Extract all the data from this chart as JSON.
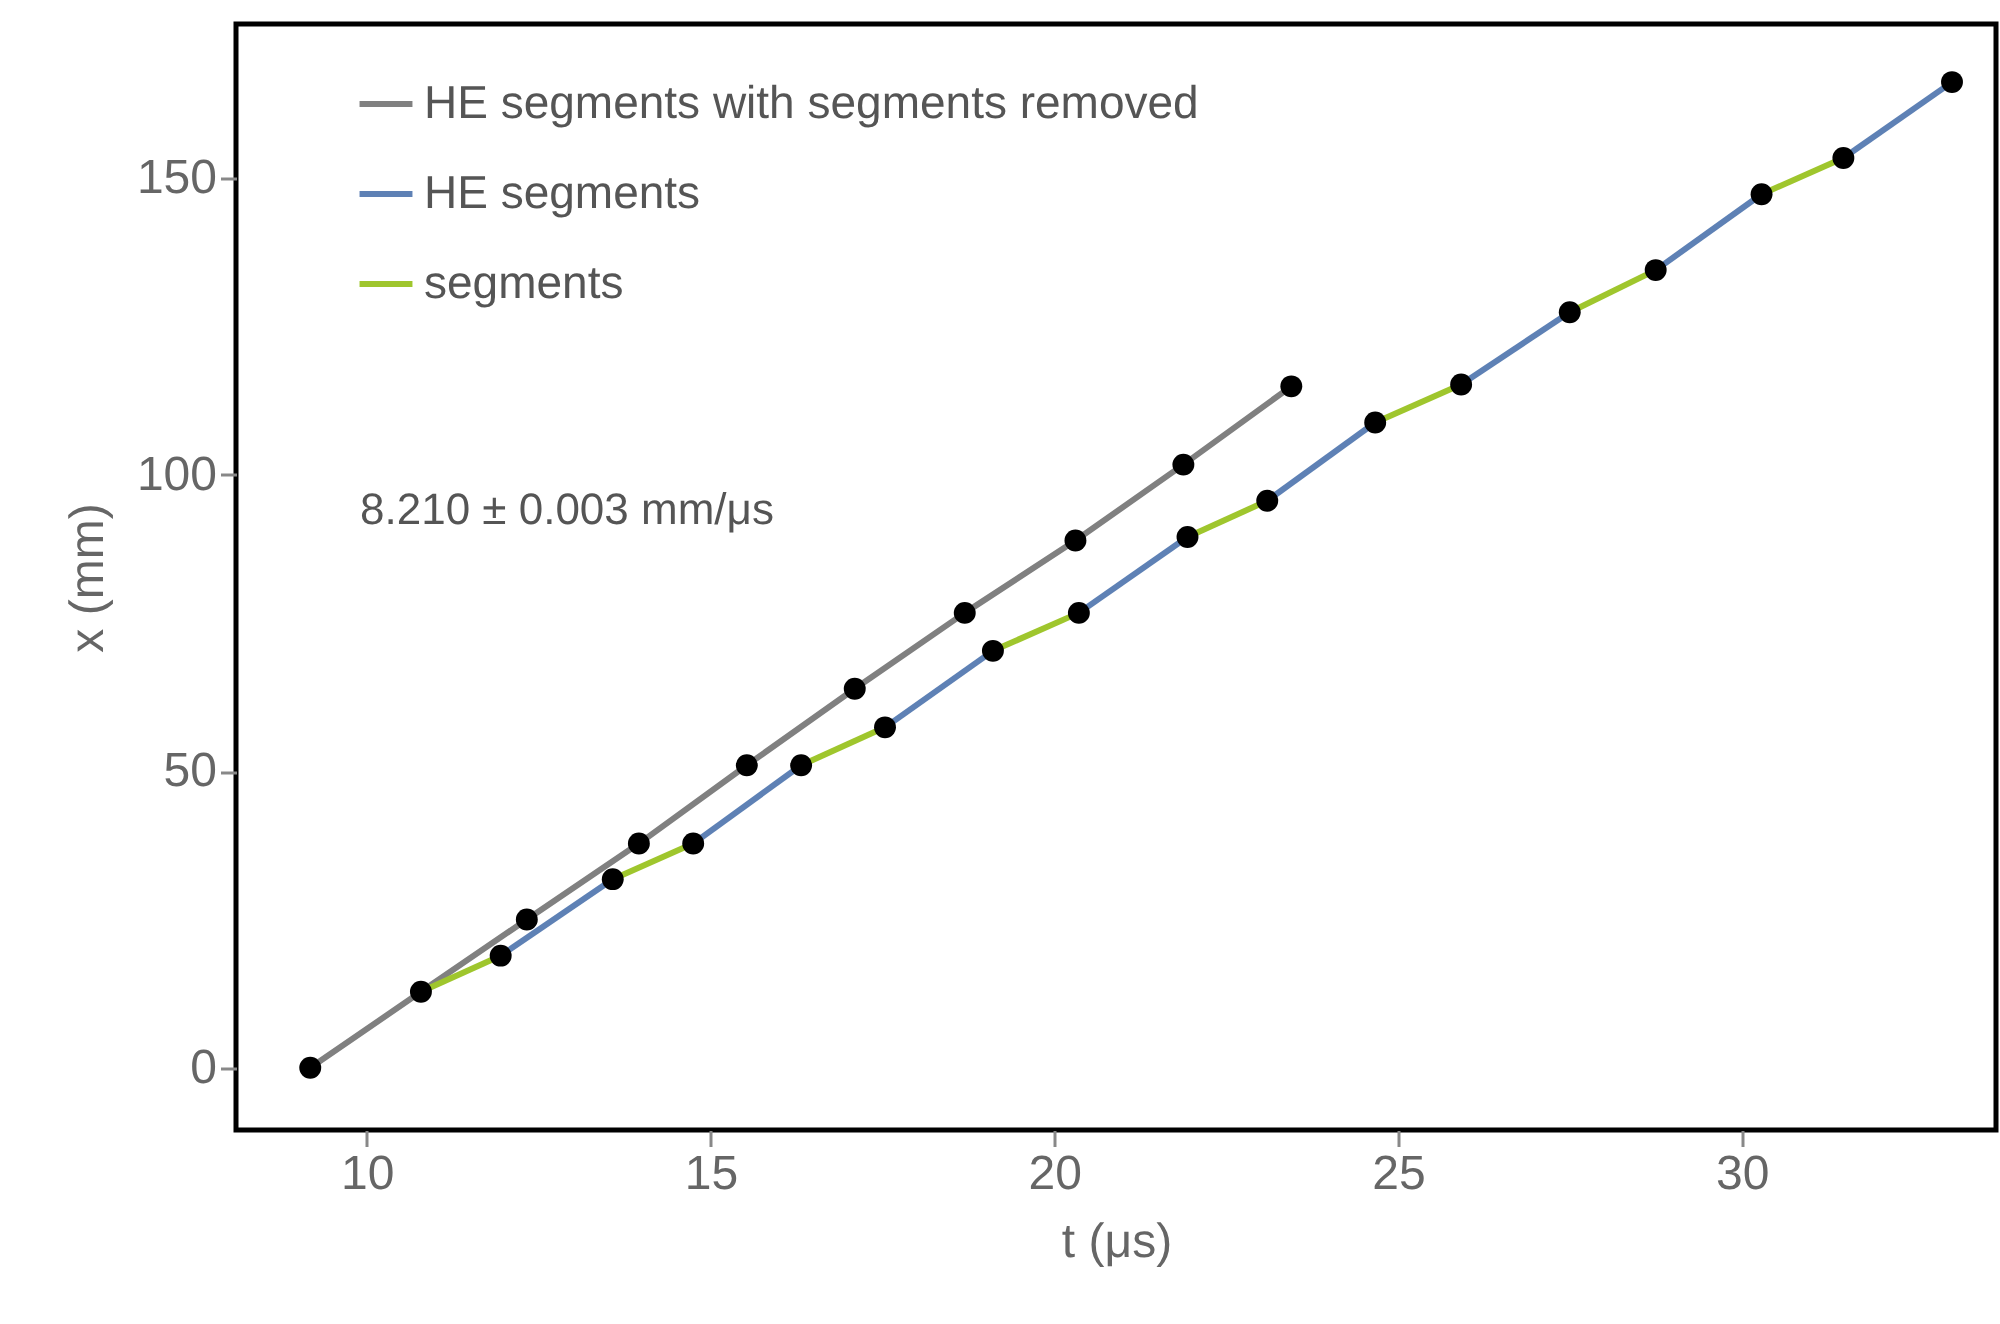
{
  "chart_data": {
    "type": "line",
    "xlabel": "t (μs)",
    "ylabel": "x (mm)",
    "xlim": [
      8.1,
      33.7
    ],
    "ylim": [
      -10.5,
      176
    ],
    "xticks": [
      10,
      15,
      20,
      25,
      30
    ],
    "yticks": [
      0,
      50,
      100,
      150
    ],
    "grid": false,
    "legend": "top left",
    "line_style": "solid",
    "annotations": [
      "8.210 ± 0.003 mm/μs"
    ],
    "series": [
      {
        "name": "HE segments with segments removed",
        "color": "#808080",
        "x": [
          9.18,
          10.79,
          12.33,
          13.96,
          15.53,
          17.1,
          18.7,
          20.31,
          21.88,
          23.45
        ],
        "values": [
          0,
          12.8,
          25.0,
          37.8,
          51.0,
          63.9,
          76.7,
          88.9,
          101.7,
          114.9
        ]
      },
      {
        "name": "HE segments",
        "color": "#5e81b5",
        "x": [
          11.95,
          13.58
        ],
        "values": [
          18.9,
          31.8
        ]
      },
      {
        "color": "#5e81b5",
        "x": [
          14.75,
          16.32
        ],
        "values": [
          37.8,
          51.0
        ]
      },
      {
        "color": "#5e81b5",
        "x": [
          17.54,
          19.11
        ],
        "values": [
          57.4,
          70.3
        ]
      },
      {
        "color": "#5e81b5",
        "x": [
          20.36,
          21.94
        ],
        "values": [
          76.7,
          89.5
        ]
      },
      {
        "color": "#5e81b5",
        "x": [
          23.1,
          24.67
        ],
        "values": [
          95.6,
          108.8
        ]
      },
      {
        "color": "#5e81b5",
        "x": [
          25.92,
          27.5
        ],
        "values": [
          115.2,
          127.4
        ]
      },
      {
        "color": "#5e81b5",
        "x": [
          28.75,
          30.29
        ],
        "values": [
          134.5,
          147.3
        ]
      },
      {
        "color": "#5e81b5",
        "x": [
          31.48,
          33.06
        ],
        "values": [
          153.4,
          166.2
        ]
      },
      {
        "name": "segments",
        "color": "#9fc62d",
        "x": [
          10.79,
          11.95
        ],
        "values": [
          12.8,
          18.9
        ]
      },
      {
        "color": "#9fc62d",
        "x": [
          13.58,
          14.75
        ],
        "values": [
          31.8,
          37.8
        ]
      },
      {
        "color": "#9fc62d",
        "x": [
          16.32,
          17.54
        ],
        "values": [
          51.0,
          57.4
        ]
      },
      {
        "color": "#9fc62d",
        "x": [
          19.11,
          20.36
        ],
        "values": [
          70.3,
          76.7
        ]
      },
      {
        "color": "#9fc62d",
        "x": [
          21.94,
          23.1
        ],
        "values": [
          89.5,
          95.6
        ]
      },
      {
        "color": "#9fc62d",
        "x": [
          24.67,
          25.92
        ],
        "values": [
          108.8,
          115.2
        ]
      },
      {
        "color": "#9fc62d",
        "x": [
          27.5,
          28.75
        ],
        "values": [
          127.4,
          134.5
        ]
      },
      {
        "color": "#9fc62d",
        "x": [
          30.29,
          31.48
        ],
        "values": [
          147.3,
          153.4
        ]
      },
      {
        "type": "scatter",
        "marker": "circle",
        "color": "#000000",
        "x": [
          9.18,
          10.79,
          12.33,
          13.96,
          15.53,
          17.1,
          18.7,
          20.31,
          21.88,
          23.45,
          11.95,
          13.58,
          14.75,
          16.32,
          17.54,
          19.11,
          20.36,
          21.94,
          23.1,
          24.67,
          25.92,
          27.5,
          28.75,
          30.29,
          31.48,
          33.06
        ],
        "values": [
          0,
          12.8,
          25.0,
          37.8,
          51.0,
          63.9,
          76.7,
          88.9,
          101.7,
          114.9,
          18.9,
          31.8,
          37.8,
          51.0,
          57.4,
          70.3,
          76.7,
          89.5,
          95.6,
          108.8,
          115.2,
          127.4,
          134.5,
          147.3,
          153.4,
          166.2
        ]
      }
    ]
  }
}
